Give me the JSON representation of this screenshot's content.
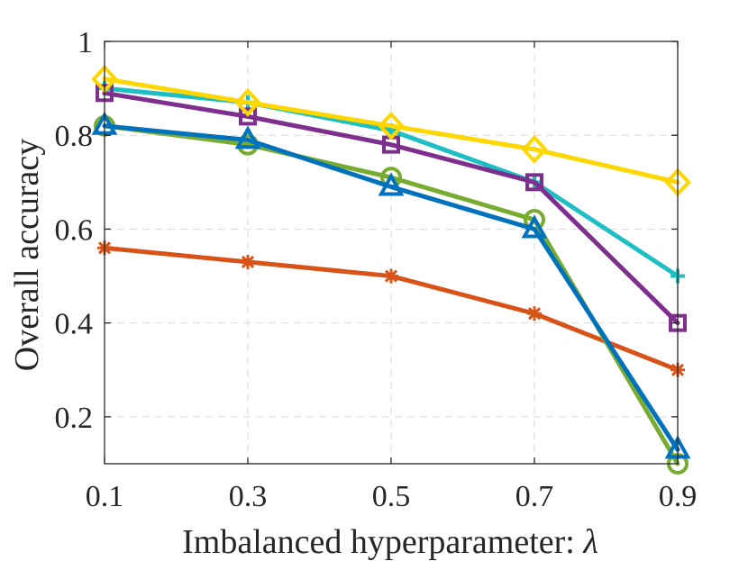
{
  "chart_data": {
    "type": "line",
    "title": "",
    "xlabel": "Imbalanced hyperparameter: ",
    "xlabel_symbol": "λ",
    "ylabel": "Overall accuracy",
    "x": [
      0.1,
      0.3,
      0.5,
      0.7,
      0.9
    ],
    "x_tick_labels": [
      "0.1",
      "0.3",
      "0.5",
      "0.7",
      "0.9"
    ],
    "xlim": [
      0.1,
      0.9
    ],
    "ylim": [
      0.1,
      1.0
    ],
    "y_ticks": [
      0.2,
      0.4,
      0.6,
      0.8,
      1.0
    ],
    "y_tick_labels": [
      "0.2",
      "0.4",
      "0.6",
      "0.8",
      "1"
    ],
    "grid": true,
    "legend": "none",
    "series": [
      {
        "name": "series-orange",
        "color": "#D95319",
        "marker": "asterisk",
        "values": [
          0.56,
          0.53,
          0.5,
          0.42,
          0.3
        ]
      },
      {
        "name": "series-green",
        "color": "#77AC30",
        "marker": "circle",
        "values": [
          0.82,
          0.78,
          0.71,
          0.62,
          0.1
        ]
      },
      {
        "name": "series-blue",
        "color": "#0072BD",
        "marker": "triangle",
        "values": [
          0.82,
          0.79,
          0.69,
          0.6,
          0.13
        ]
      },
      {
        "name": "series-cyan",
        "color": "#1DBFC4",
        "marker": "plus",
        "values": [
          0.9,
          0.87,
          0.81,
          0.7,
          0.5
        ]
      },
      {
        "name": "series-purple",
        "color": "#7E2F8E",
        "marker": "square",
        "values": [
          0.89,
          0.84,
          0.78,
          0.7,
          0.4
        ]
      },
      {
        "name": "series-yellow",
        "color": "#FFD700",
        "marker": "diamond",
        "values": [
          0.92,
          0.87,
          0.82,
          0.77,
          0.7
        ]
      }
    ]
  }
}
